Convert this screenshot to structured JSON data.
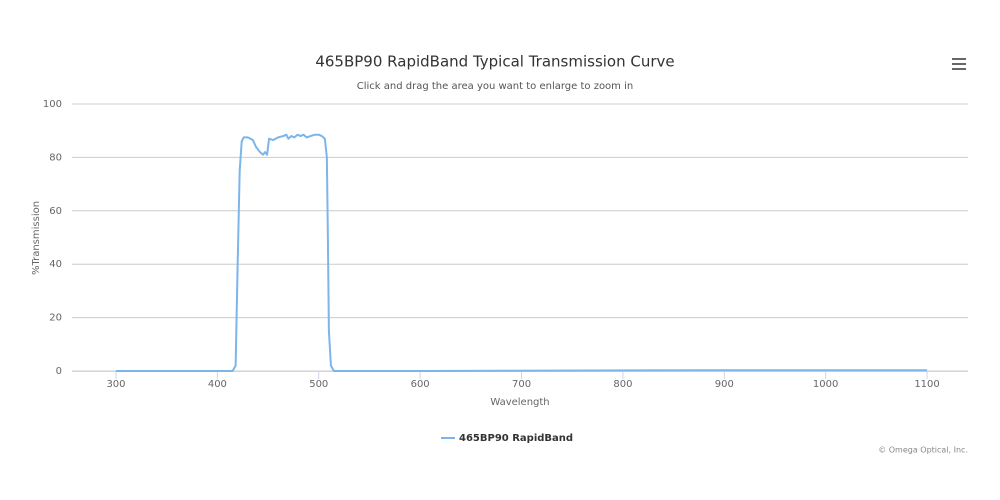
{
  "chart_data": {
    "type": "line",
    "title": "465BP90 RapidBand Typical Transmission Curve",
    "subtitle": "Click and drag the area you want to enlarge to zoom in",
    "x_label": "Wavelength",
    "y_label": "%Transmission",
    "credits": "© Omega Optical, Inc.",
    "x": [
      300,
      415,
      418,
      420,
      422,
      424,
      426,
      430,
      435,
      438,
      442,
      445,
      447,
      449,
      451,
      455,
      460,
      465,
      468,
      470,
      473,
      476,
      479,
      482,
      485,
      488,
      492,
      496,
      500,
      503,
      506,
      508,
      509,
      510,
      512,
      515,
      600,
      880,
      1100
    ],
    "series": [
      {
        "name": "465BP90 RapidBand",
        "color": "#7cb5ec",
        "values": [
          0,
          0,
          2,
          40,
          75,
          86,
          87.5,
          87.5,
          86.5,
          84,
          82,
          81,
          82,
          81,
          87,
          86.5,
          87.5,
          88,
          88.5,
          87,
          88,
          87.5,
          88.5,
          88,
          88.5,
          87.5,
          88,
          88.5,
          88.5,
          88,
          87,
          80,
          50,
          15,
          2,
          0,
          0,
          0.3,
          0.3
        ]
      }
    ],
    "xlim": [
      256.6,
      1140.4
    ],
    "xticks": [
      300,
      400,
      500,
      600,
      700,
      800,
      900,
      1000,
      1100
    ],
    "ylim": [
      0,
      100
    ],
    "yticks": [
      0,
      20,
      40,
      60,
      80,
      100
    ],
    "grid": true,
    "legend": "bottom"
  }
}
